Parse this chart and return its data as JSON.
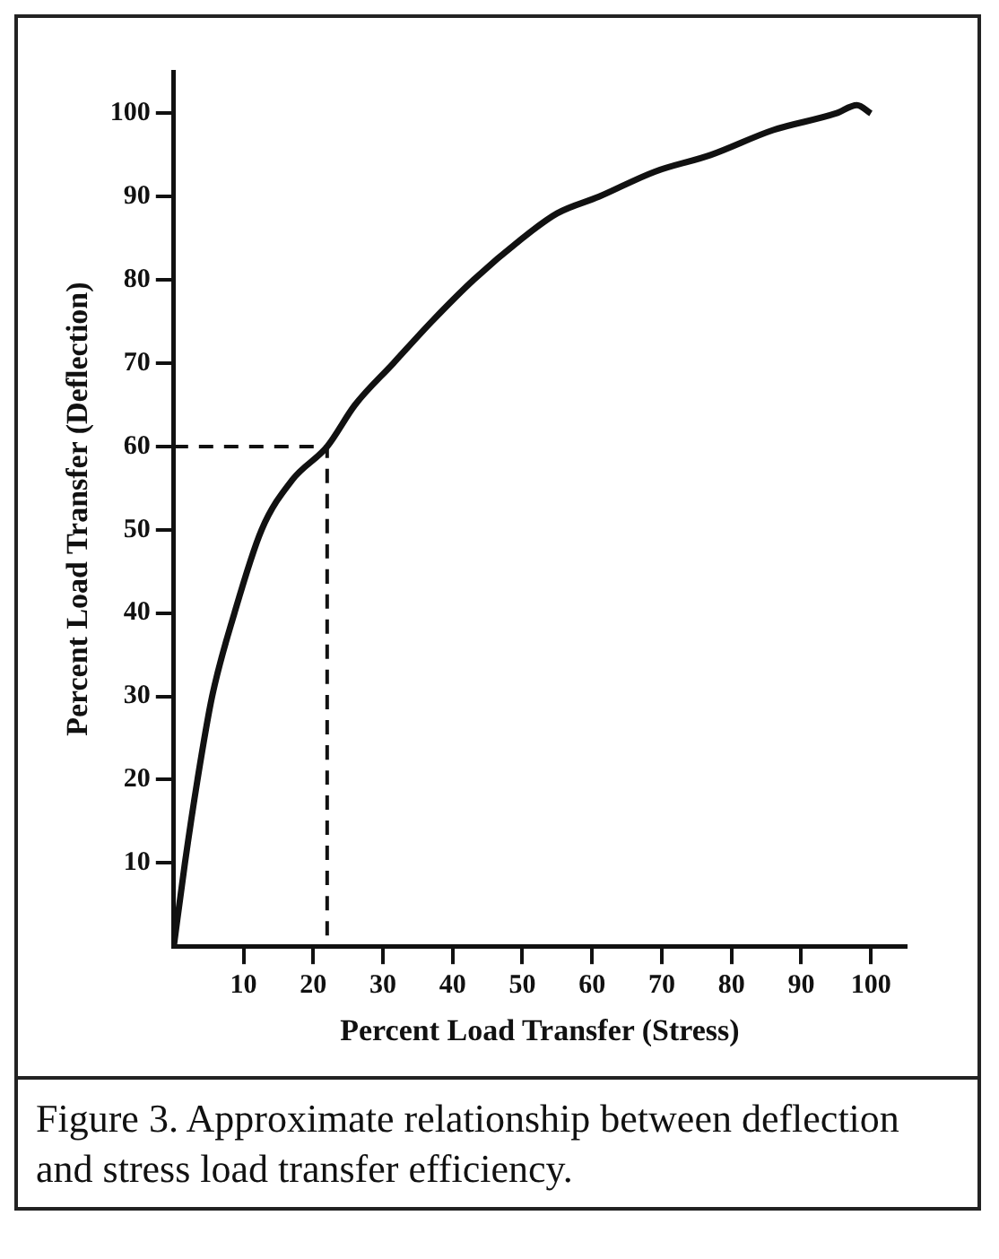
{
  "chart_data": {
    "type": "line",
    "xlabel": "Percent Load Transfer (Stress)",
    "ylabel": "Percent Load Transfer (Deflection)",
    "annotations": [
      "Figure 3. Approximate relationship between deflection and stress load transfer efficiency."
    ],
    "xlim": [
      0,
      105
    ],
    "ylim": [
      0,
      105
    ],
    "xticks": [
      10,
      20,
      30,
      40,
      50,
      60,
      70,
      80,
      90,
      100
    ],
    "yticks": [
      10,
      20,
      30,
      40,
      50,
      60,
      70,
      80,
      90,
      100
    ],
    "legend": false,
    "marker": "none",
    "series": [
      {
        "color": "#111111",
        "line_style": "solid",
        "x": [
          0,
          1.6,
          3.4,
          5.5,
          8.7,
          12.6,
          17,
          22,
          26,
          31.5,
          37,
          43,
          50,
          55,
          61,
          69,
          77,
          86,
          95,
          98,
          100
        ],
        "values": [
          0,
          10,
          20,
          30,
          40,
          50,
          56,
          60,
          65,
          70,
          75,
          80,
          85,
          88,
          90,
          93,
          95,
          98,
          100,
          101,
          100
        ]
      },
      {
        "color": "#111111",
        "line_style": "dashed",
        "x": [
          0,
          22,
          22
        ],
        "values": [
          60,
          60,
          0
        ]
      }
    ]
  }
}
